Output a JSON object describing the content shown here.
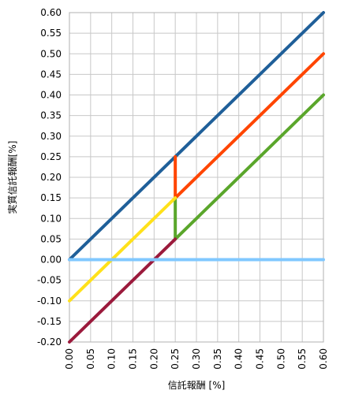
{
  "chart_data": {
    "type": "line",
    "title": "",
    "xlabel": "信託報酬 [%]",
    "ylabel": "実質信託報酬[%]",
    "xlim": [
      0,
      0.6
    ],
    "ylim": [
      -0.2,
      0.6
    ],
    "grid": true,
    "legend": "none",
    "xticks": [
      "0.00",
      "0.05",
      "0.10",
      "0.15",
      "0.20",
      "0.25",
      "0.30",
      "0.35",
      "0.40",
      "0.45",
      "0.50",
      "0.55",
      "0.60"
    ],
    "yticks": [
      "0.60",
      "0.55",
      "0.50",
      "0.45",
      "0.40",
      "0.35",
      "0.30",
      "0.25",
      "0.20",
      "0.15",
      "0.10",
      "0.05",
      "0.00",
      "-0.05",
      "-0.10",
      "-0.15",
      "-0.20"
    ],
    "series": [
      {
        "color": "#1f5f99",
        "points": [
          [
            0,
            0
          ],
          [
            0.6,
            0.6
          ]
        ]
      },
      {
        "color": "#ff4500",
        "points": [
          [
            0.25,
            0.25
          ],
          [
            0.25,
            0.15
          ],
          [
            0.6,
            0.5
          ]
        ]
      },
      {
        "color": "#5aa62b",
        "points": [
          [
            0.25,
            0.15
          ],
          [
            0.25,
            0.05
          ],
          [
            0.6,
            0.4
          ]
        ]
      },
      {
        "color": "#ffe11a",
        "points": [
          [
            0,
            -0.1
          ],
          [
            0.25,
            0.15
          ]
        ]
      },
      {
        "color": "#9b1a3c",
        "points": [
          [
            0,
            -0.2
          ],
          [
            0.25,
            0.05
          ]
        ]
      },
      {
        "color": "#80c8ff",
        "points": [
          [
            0,
            0
          ],
          [
            0.6,
            0
          ]
        ]
      }
    ]
  }
}
